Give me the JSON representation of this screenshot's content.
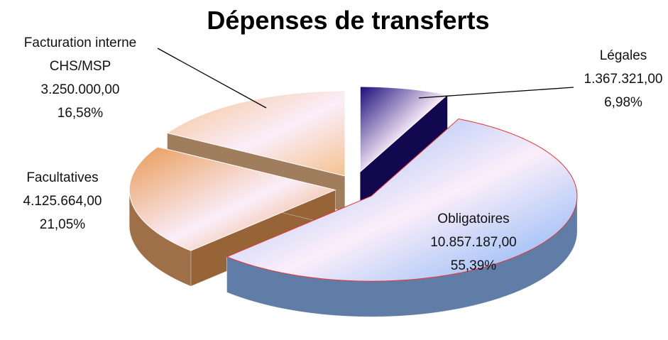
{
  "chart_data": {
    "type": "pie3d",
    "title": "Dépenses de transferts",
    "categories": [
      "Légales",
      "Obligatoires",
      "Facultatives",
      "Facturation interne CHS/MSP"
    ],
    "values": [
      1367321,
      10857187,
      4125664,
      3250000
    ],
    "value_labels": [
      "1.367.321,00",
      "10.857.187,00",
      "4.125.664,00",
      "3.250.000,00"
    ],
    "percentages": [
      6.98,
      55.39,
      21.05,
      16.58
    ],
    "percentage_labels": [
      "6,98%",
      "55,39%",
      "21,05%",
      "16,58%"
    ],
    "colors": [
      "#1b0d7a",
      "#7fb0f5",
      "#e89a55",
      "#f4c18f"
    ]
  }
}
